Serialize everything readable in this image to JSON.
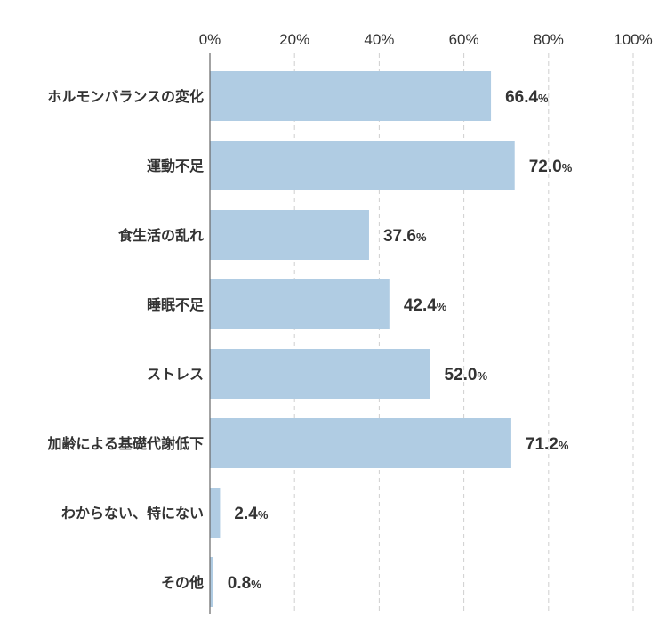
{
  "chart_data": {
    "type": "bar",
    "orientation": "horizontal",
    "categories": [
      "ホルモンバランスの変化",
      "運動不足",
      "食生活の乱れ",
      "睡眠不足",
      "ストレス",
      "加齢による基礎代謝低下",
      "わからない、特にない",
      "その他"
    ],
    "values": [
      66.4,
      72.0,
      37.6,
      42.4,
      52.0,
      71.2,
      2.4,
      0.8
    ],
    "value_labels": [
      "66.4",
      "72.0",
      "37.6",
      "42.4",
      "52.0",
      "71.2",
      "2.4",
      "0.8"
    ],
    "value_unit": "%",
    "xlim": [
      0,
      100
    ],
    "x_ticks": [
      0,
      20,
      40,
      60,
      80,
      100
    ],
    "x_tick_labels": [
      "0%",
      "20%",
      "40%",
      "60%",
      "80%",
      "100%"
    ],
    "x_axis_position": "top",
    "grid": true,
    "bar_color": "#b0cce3",
    "title": "",
    "xlabel": "",
    "ylabel": ""
  }
}
